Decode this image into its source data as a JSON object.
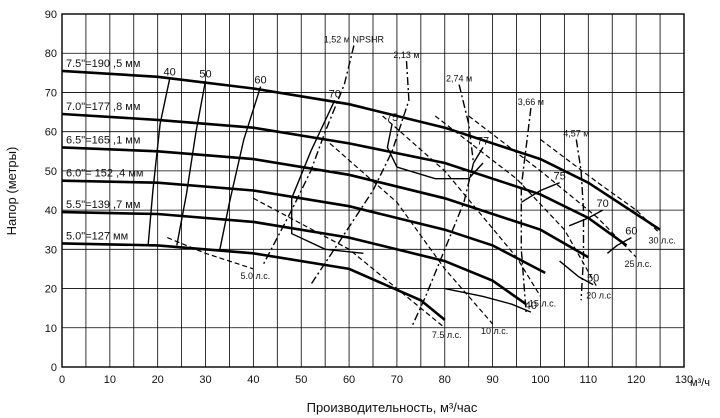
{
  "chart_data": {
    "type": "line",
    "xlabel": "Производительность, м³/час",
    "ylabel": "Напор (метры)",
    "x_unit_label": "м³/ч",
    "xlim": [
      0,
      130
    ],
    "ylim": [
      0,
      90
    ],
    "xticks": [
      0,
      5,
      10,
      15,
      20,
      25,
      30,
      35,
      40,
      45,
      50,
      55,
      60,
      65,
      70,
      75,
      80,
      85,
      90,
      95,
      100,
      105,
      110,
      115,
      120,
      125,
      130
    ],
    "xtick_labels": [
      "0",
      "10",
      "20",
      "30",
      "40",
      "50",
      "60",
      "70",
      "80",
      "90",
      "100",
      "110",
      "120",
      "130"
    ],
    "yticks": [
      0,
      10,
      20,
      30,
      40,
      50,
      60,
      70,
      80,
      90
    ],
    "grid": true,
    "series": [
      {
        "name": "7.5\"=190 ,5 мм",
        "x": [
          0,
          20,
          40,
          60,
          80,
          100,
          110,
          125
        ],
        "y": [
          75.5,
          74,
          71,
          67,
          61,
          53,
          47,
          35
        ]
      },
      {
        "name": "7.0\"=177 ,8 мм",
        "x": [
          0,
          20,
          40,
          60,
          80,
          100,
          110,
          118
        ],
        "y": [
          64.5,
          63,
          61,
          57,
          52,
          44,
          38,
          31
        ]
      },
      {
        "name": "6.5\"=165 ,1 мм",
        "x": [
          0,
          20,
          40,
          60,
          80,
          100,
          110
        ],
        "y": [
          56,
          55,
          53,
          49,
          43,
          35,
          28
        ]
      },
      {
        "name": "6.0\"= 152 ,4 мм",
        "x": [
          0,
          20,
          40,
          60,
          80,
          90,
          101
        ],
        "y": [
          47.5,
          47,
          45,
          41,
          35,
          31,
          24
        ]
      },
      {
        "name": "5.5\"=139 ,7 мм",
        "x": [
          0,
          20,
          40,
          60,
          80,
          90,
          97
        ],
        "y": [
          39.5,
          39,
          37,
          33,
          27,
          22,
          16
        ]
      },
      {
        "name": "5.0\"=127 мм",
        "x": [
          0,
          20,
          40,
          60,
          75,
          80
        ],
        "y": [
          31.5,
          31,
          29,
          25,
          17,
          12
        ]
      }
    ],
    "efficiency_curves": [
      {
        "label": "40",
        "x": [
          22.5,
          20.5,
          19,
          18
        ],
        "y": [
          73.5,
          62,
          45,
          31
        ]
      },
      {
        "label": "50",
        "x": [
          30,
          28,
          26,
          24
        ],
        "y": [
          73,
          60,
          44,
          31
        ]
      },
      {
        "label": "60",
        "x": [
          41.5,
          38,
          35,
          33
        ],
        "y": [
          71.5,
          58,
          42,
          30
        ]
      },
      {
        "label": "70",
        "x": [
          57,
          52,
          48,
          48,
          55,
          63
        ],
        "y": [
          68,
          55,
          43,
          34,
          30,
          29
        ]
      },
      {
        "label": "75",
        "x": [
          69,
          68,
          70,
          78,
          85,
          88
        ],
        "y": [
          62,
          56,
          51,
          48,
          48,
          52
        ]
      },
      {
        "label": "77",
        "x": [
          88,
          86
        ],
        "y": [
          56,
          52
        ]
      },
      {
        "label": "75",
        "x": [
          104,
          100,
          96
        ],
        "y": [
          47,
          45,
          42
        ]
      },
      {
        "label": "70",
        "x": [
          113,
          110,
          106
        ],
        "y": [
          40,
          38,
          36
        ]
      },
      {
        "label": "60",
        "x": [
          119,
          116,
          114
        ],
        "y": [
          33,
          31,
          29
        ]
      },
      {
        "label": "50",
        "x": [
          111,
          108,
          106,
          104
        ],
        "y": [
          21,
          23,
          25,
          27
        ]
      },
      {
        "label": "40",
        "x": [
          98,
          94,
          88,
          80
        ],
        "y": [
          14,
          16,
          18,
          20
        ]
      }
    ],
    "npshr_curves": [
      {
        "label": "1,52 м NPSHR",
        "x": [
          61,
          59,
          55,
          52,
          48,
          42
        ],
        "y": [
          82,
          72,
          60,
          50,
          40,
          26
        ]
      },
      {
        "label": "2,13 м",
        "x": [
          72,
          72.5,
          69,
          65,
          58,
          52
        ],
        "y": [
          78,
          68,
          55,
          45,
          32,
          21
        ]
      },
      {
        "label": "2,74 м",
        "x": [
          83,
          85,
          86,
          84,
          80,
          76,
          73
        ],
        "y": [
          72,
          62,
          52,
          42,
          30,
          18,
          10
        ]
      },
      {
        "label": "3,66 м",
        "x": [
          98,
          97,
          96,
          96,
          97
        ],
        "y": [
          66,
          56,
          46,
          30,
          14
        ]
      },
      {
        "label": "4,57 м",
        "x": [
          107.5,
          108.5,
          109,
          109,
          108.5
        ],
        "y": [
          58,
          50,
          40,
          28,
          17
        ]
      }
    ],
    "power_curves": [
      {
        "label": "5.0 л.с.",
        "x": [
          22,
          30,
          40
        ],
        "y": [
          33,
          29,
          25
        ]
      },
      {
        "label": "7.5 л.с.",
        "x": [
          40,
          60,
          75,
          80
        ],
        "y": [
          43,
          30,
          15,
          10
        ]
      },
      {
        "label": "10 л.с.",
        "x": [
          56,
          70,
          80,
          90
        ],
        "y": [
          57,
          42,
          25,
          11
        ]
      },
      {
        "label": "15 л.с.",
        "x": [
          67,
          80,
          95,
          100
        ],
        "y": [
          64,
          50,
          28,
          18
        ]
      },
      {
        "label": "20 л.с.",
        "x": [
          78,
          95,
          105,
          112
        ],
        "y": [
          64,
          48,
          35,
          20
        ]
      },
      {
        "label": "25 л.с.",
        "x": [
          85,
          100,
          112,
          120
        ],
        "y": [
          64,
          50,
          38,
          28
        ]
      },
      {
        "label": "30 л.с.",
        "x": [
          100,
          112,
          120,
          125
        ],
        "y": [
          58,
          47,
          40,
          34
        ]
      }
    ]
  }
}
